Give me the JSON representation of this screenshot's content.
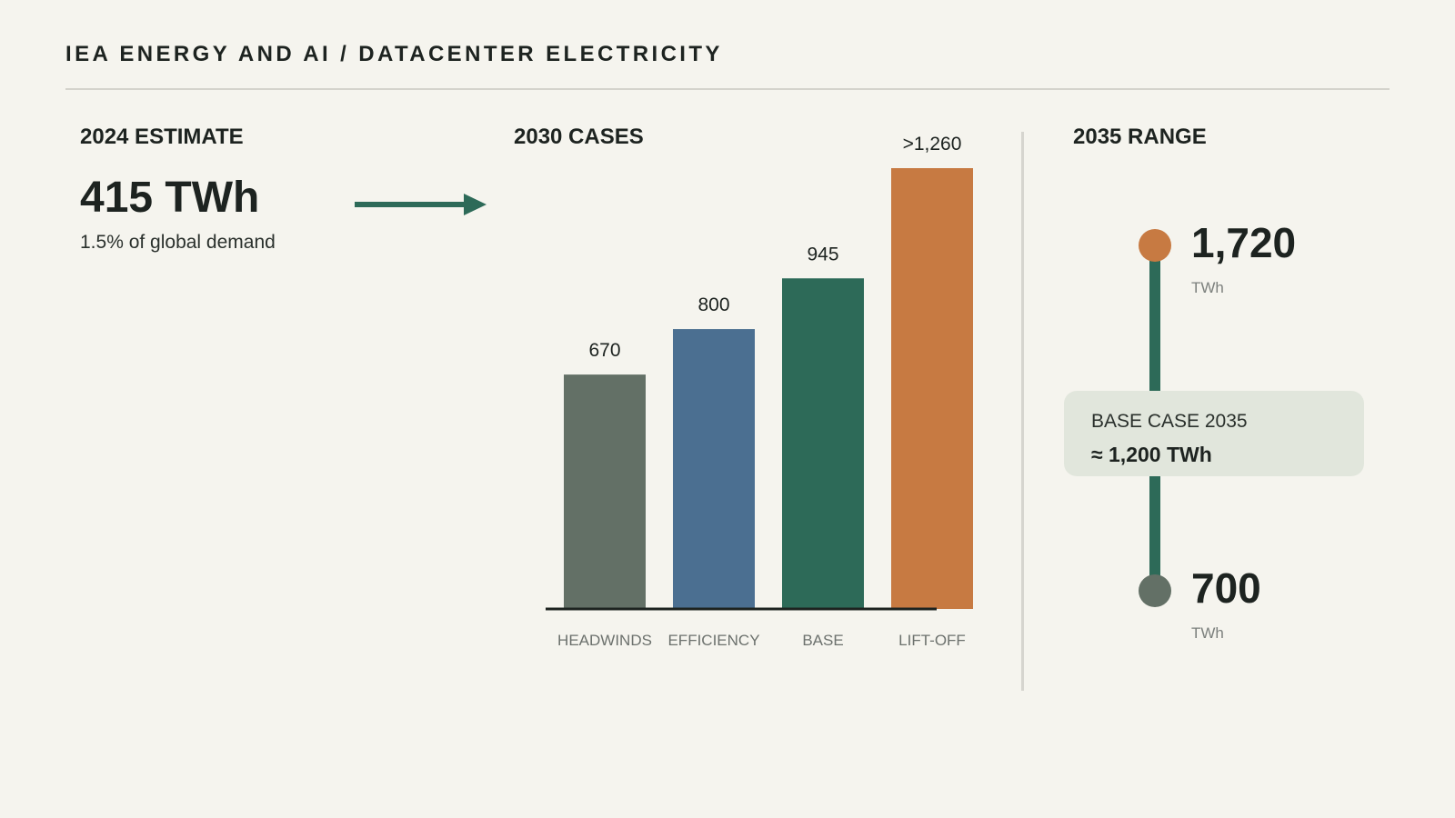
{
  "header": {
    "title": "IEA ENERGY AND AI / DATACENTER ELECTRICITY"
  },
  "estimate": {
    "label": "2024 ESTIMATE",
    "value": "415 TWh",
    "subtext": "1.5% of global demand"
  },
  "cases": {
    "label": "2030 CASES"
  },
  "range": {
    "label": "2035 RANGE",
    "high_value": "1,720",
    "high_unit": "TWh",
    "low_value": "700",
    "low_unit": "TWh",
    "base_label": "BASE CASE 2035",
    "base_value": "≈ 1,200 TWh",
    "colors": {
      "high": "#c77a42",
      "low": "#637066",
      "line": "#2d6a58"
    }
  },
  "arrow": {
    "color": "#2d6a58"
  },
  "chart_data": {
    "type": "bar",
    "categories": [
      "HEADWINDS",
      "EFFICIENCY",
      "BASE",
      "LIFT-OFF"
    ],
    "values": [
      670,
      800,
      945,
      1260
    ],
    "value_labels": [
      "670",
      "800",
      "945",
      ">1,260"
    ],
    "colors": [
      "#637066",
      "#4b6f91",
      "#2d6a58",
      "#c77a42"
    ],
    "ylim": [
      0,
      1260
    ],
    "grid": false
  }
}
